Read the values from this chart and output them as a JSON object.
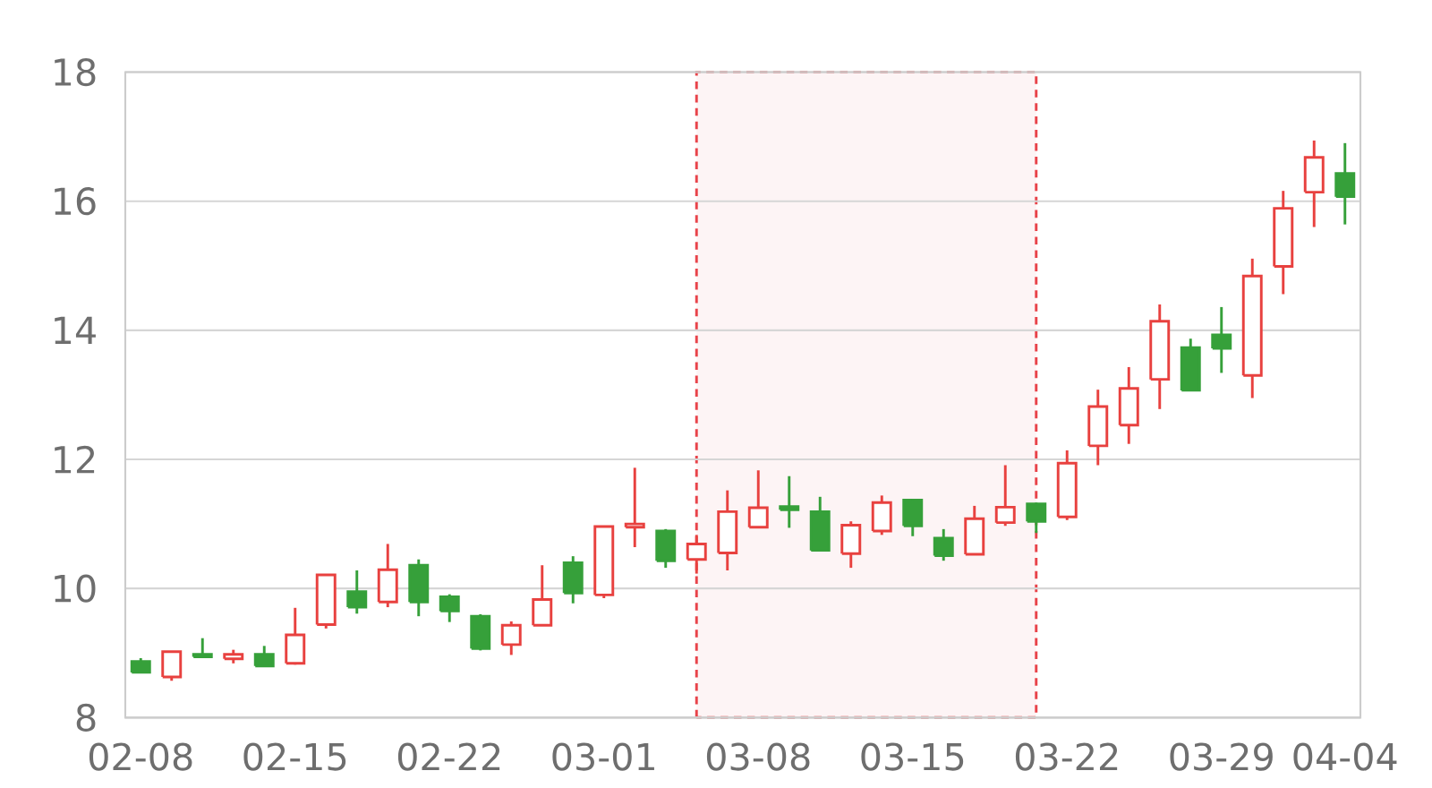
{
  "chart_data": {
    "type": "candlestick",
    "categories": [
      "02-08",
      null,
      null,
      null,
      null,
      "02-15",
      null,
      null,
      null,
      null,
      "02-22",
      null,
      null,
      null,
      null,
      "03-01",
      null,
      null,
      null,
      null,
      "03-08",
      null,
      null,
      null,
      null,
      "03-15",
      null,
      null,
      null,
      null,
      "03-22",
      null,
      null,
      null,
      null,
      "03-29",
      null,
      null,
      null,
      "04-04"
    ],
    "ohlc": [
      [
        8.87,
        8.92,
        8.7,
        8.7
      ],
      [
        8.63,
        9.02,
        8.57,
        9.02
      ],
      [
        8.98,
        9.23,
        8.94,
        8.94
      ],
      [
        8.91,
        9.05,
        8.84,
        8.98
      ],
      [
        8.98,
        9.11,
        8.8,
        8.8
      ],
      [
        8.84,
        9.7,
        8.82,
        9.28
      ],
      [
        9.44,
        10.21,
        9.38,
        10.21
      ],
      [
        9.95,
        10.28,
        9.61,
        9.71
      ],
      [
        9.79,
        10.69,
        9.71,
        10.29
      ],
      [
        10.36,
        10.45,
        9.57,
        9.79
      ],
      [
        9.87,
        9.91,
        9.48,
        9.65
      ],
      [
        9.57,
        9.6,
        9.04,
        9.07
      ],
      [
        9.13,
        9.49,
        8.97,
        9.43
      ],
      [
        9.43,
        10.36,
        9.43,
        9.83
      ],
      [
        10.4,
        10.5,
        9.77,
        9.93
      ],
      [
        9.9,
        10.96,
        9.85,
        10.96
      ],
      [
        10.95,
        11.87,
        10.64,
        11.0
      ],
      [
        10.89,
        10.92,
        10.32,
        10.43
      ],
      [
        10.45,
        10.83,
        10.23,
        10.69
      ],
      [
        10.55,
        11.52,
        10.28,
        11.19
      ],
      [
        10.95,
        11.83,
        10.95,
        11.25
      ],
      [
        11.27,
        11.74,
        10.94,
        11.22
      ],
      [
        11.19,
        11.42,
        10.59,
        10.59
      ],
      [
        10.54,
        11.04,
        10.32,
        10.98
      ],
      [
        10.89,
        11.44,
        10.83,
        11.33
      ],
      [
        11.37,
        11.39,
        10.81,
        10.97
      ],
      [
        10.78,
        10.92,
        10.43,
        10.51
      ],
      [
        10.53,
        11.28,
        10.53,
        11.08
      ],
      [
        11.02,
        11.91,
        10.97,
        11.26
      ],
      [
        11.31,
        11.33,
        10.86,
        11.04
      ],
      [
        11.11,
        12.14,
        11.06,
        11.94
      ],
      [
        12.21,
        13.08,
        11.91,
        12.82
      ],
      [
        12.53,
        13.43,
        12.24,
        13.1
      ],
      [
        13.24,
        14.4,
        12.78,
        14.14
      ],
      [
        13.73,
        13.87,
        13.07,
        13.07
      ],
      [
        13.93,
        14.36,
        13.34,
        13.72
      ],
      [
        13.3,
        15.11,
        12.95,
        14.84
      ],
      [
        14.99,
        16.16,
        14.56,
        15.89
      ],
      [
        16.14,
        16.94,
        15.6,
        16.68
      ],
      [
        16.43,
        16.9,
        15.64,
        16.07
      ]
    ],
    "colors": [
      "#36a03a",
      "#e8413f",
      "#36a03a",
      "#e8413f",
      "#36a03a",
      "#e8413f",
      "#e8413f",
      "#36a03a",
      "#e8413f",
      "#36a03a",
      "#36a03a",
      "#36a03a",
      "#e8413f",
      "#e8413f",
      "#36a03a",
      "#e8413f",
      "#e8413f",
      "#36a03a",
      "#e8413f",
      "#e8413f",
      "#e8413f",
      "#36a03a",
      "#36a03a",
      "#e8413f",
      "#e8413f",
      "#36a03a",
      "#36a03a",
      "#e8413f",
      "#e8413f",
      "#36a03a",
      "#e8413f",
      "#e8413f",
      "#e8413f",
      "#e8413f",
      "#36a03a",
      "#36a03a",
      "#e8413f",
      "#e8413f",
      "#e8413f",
      "#36a03a"
    ],
    "ylim": [
      8,
      18
    ],
    "yticks": [
      8,
      10,
      12,
      14,
      16,
      18
    ],
    "grid": "y"
  }
}
